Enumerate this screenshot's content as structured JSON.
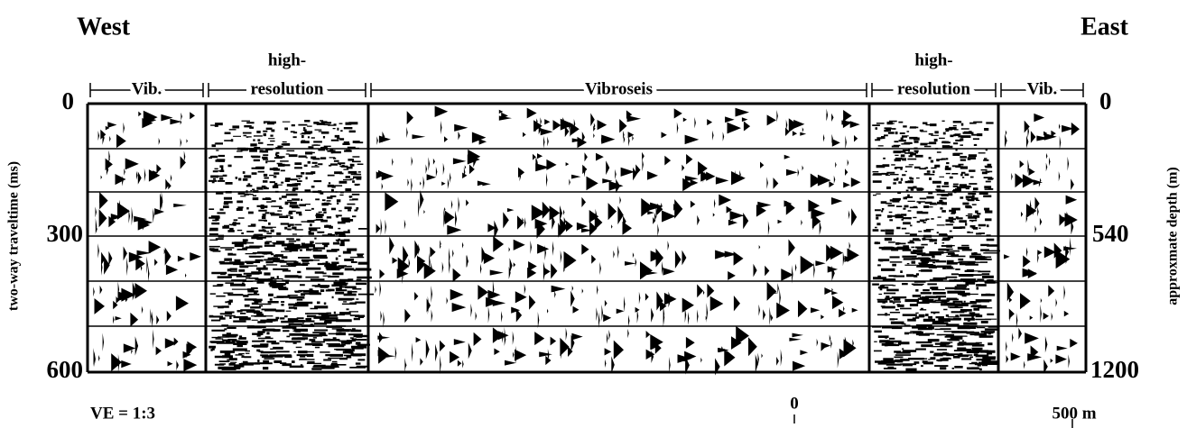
{
  "header": {
    "left": "West",
    "right": "East"
  },
  "panels": [
    {
      "lines": [
        "Vib."
      ]
    },
    {
      "lines": [
        "high-",
        "resolution"
      ]
    },
    {
      "lines": [
        "Vibroseis"
      ]
    },
    {
      "lines": [
        "high-",
        "resolution"
      ]
    },
    {
      "lines": [
        "Vib."
      ]
    }
  ],
  "left_axis": {
    "title": "two-way traveltime (ms)",
    "ticks": [
      "0",
      "300",
      "600"
    ]
  },
  "right_axis": {
    "title": "approxmate depth (m)",
    "ticks": [
      "0",
      "540",
      "1200"
    ]
  },
  "footer": {
    "ve": "VE = 1:3",
    "scale_start": "0",
    "scale_end": "500 m"
  }
}
